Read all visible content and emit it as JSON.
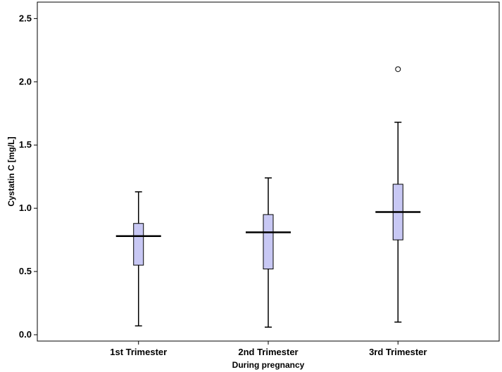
{
  "chart_data": {
    "type": "boxplot",
    "title": "",
    "xlabel": "During pregnancy",
    "ylabel": "Cystatin C [mg/L]",
    "ylim": [
      -0.05,
      2.63
    ],
    "yticks": [
      "0.0",
      "0.5",
      "1.0",
      "1.5",
      "2.0",
      "2.5"
    ],
    "categories": [
      "1st Trimester",
      "2nd Trimester",
      "3rd Trimester"
    ],
    "boxes": [
      {
        "whisker_low": 0.07,
        "q1": 0.55,
        "median": 0.78,
        "q3": 0.88,
        "whisker_high": 1.13,
        "outliers": []
      },
      {
        "whisker_low": 0.06,
        "q1": 0.52,
        "median": 0.81,
        "q3": 0.95,
        "whisker_high": 1.24,
        "outliers": []
      },
      {
        "whisker_low": 0.1,
        "q1": 0.75,
        "median": 0.97,
        "q3": 1.19,
        "whisker_high": 1.68,
        "outliers": [
          2.1
        ]
      }
    ],
    "grid": false,
    "colors": {
      "box_fill": "#c8c8f4",
      "box_stroke": "#000000",
      "axis": "#000000"
    }
  }
}
